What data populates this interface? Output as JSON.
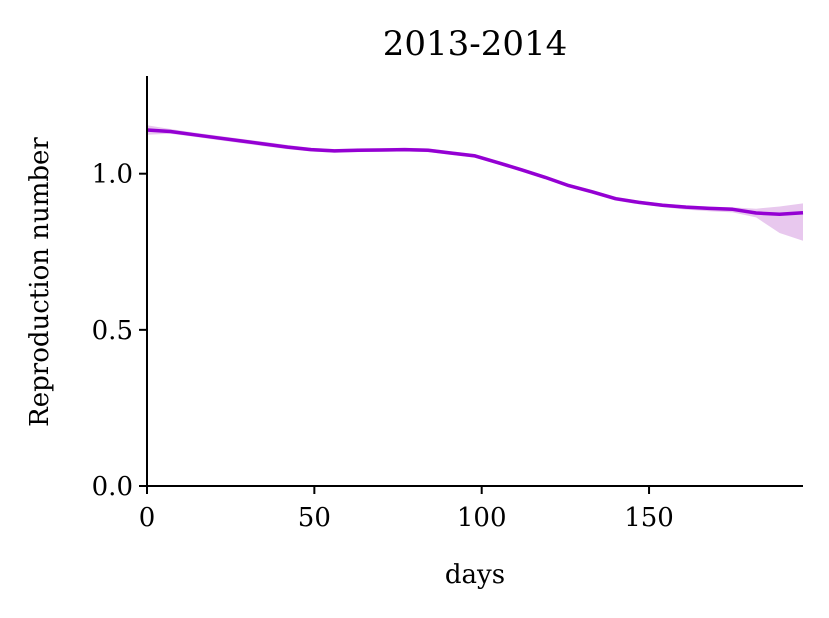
{
  "chart_data": {
    "type": "line",
    "title": "2013-2014",
    "xlabel": "days",
    "ylabel": "Reproduction number",
    "xlim": [
      0,
      196
    ],
    "ylim": [
      0,
      1.3
    ],
    "xticks": [
      0,
      50,
      100,
      150
    ],
    "xtick_labels": [
      "0",
      "50",
      "100",
      "150"
    ],
    "yticks": [
      0.0,
      0.5,
      1.0
    ],
    "ytick_labels": [
      "0.0",
      "0.5",
      "1.0"
    ],
    "grid": false,
    "legend": "none",
    "series": [
      {
        "color": "#9400d3",
        "band_color": "#e8c8ee",
        "x": [
          0,
          7,
          14,
          21,
          28,
          35,
          42,
          49,
          56,
          63,
          70,
          77,
          84,
          91,
          98,
          105,
          112,
          119,
          126,
          133,
          140,
          147,
          154,
          161,
          168,
          175,
          182,
          189,
          196
        ],
        "y": [
          1.14,
          1.135,
          1.125,
          1.115,
          1.105,
          1.095,
          1.085,
          1.077,
          1.073,
          1.075,
          1.076,
          1.077,
          1.075,
          1.066,
          1.057,
          1.035,
          1.012,
          0.988,
          0.962,
          0.942,
          0.92,
          0.908,
          0.899,
          0.893,
          0.889,
          0.886,
          0.874,
          0.87,
          0.875
        ],
        "lower": [
          1.125,
          1.128,
          1.118,
          1.108,
          1.098,
          1.088,
          1.078,
          1.071,
          1.067,
          1.069,
          1.07,
          1.071,
          1.069,
          1.06,
          1.051,
          1.029,
          1.006,
          0.982,
          0.956,
          0.936,
          0.914,
          0.902,
          0.893,
          0.885,
          0.88,
          0.876,
          0.86,
          0.81,
          0.785
        ],
        "upper": [
          1.155,
          1.143,
          1.132,
          1.122,
          1.112,
          1.102,
          1.092,
          1.083,
          1.079,
          1.081,
          1.082,
          1.083,
          1.081,
          1.072,
          1.063,
          1.041,
          1.018,
          0.994,
          0.968,
          0.948,
          0.926,
          0.914,
          0.905,
          0.899,
          0.895,
          0.892,
          0.888,
          0.895,
          0.905
        ]
      }
    ]
  }
}
